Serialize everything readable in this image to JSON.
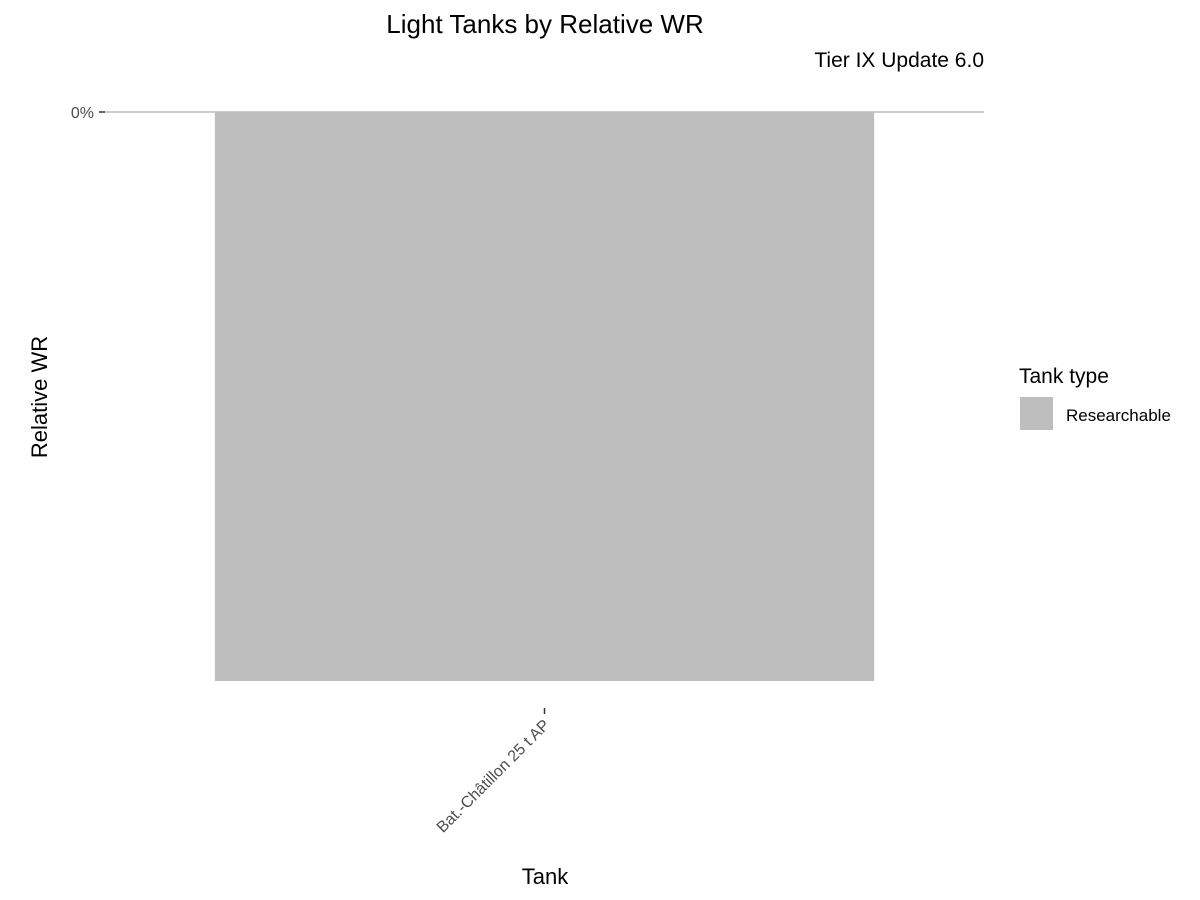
{
  "chart_data": {
    "type": "bar",
    "title": "Light Tanks by Relative WR",
    "subtitle": "Tier IX Update 6.0",
    "xlabel": "Tank",
    "ylabel": "Relative WR",
    "categories": [
      "Bat.-Châtillon 25 t AP"
    ],
    "series": [
      {
        "values": [
          0
        ],
        "tank_type": [
          "Researchable"
        ]
      }
    ],
    "y_ticks": [
      "0%"
    ],
    "legend": {
      "title": "Tank type",
      "placement": "right",
      "items": [
        {
          "label": "Researchable",
          "color": "#bebebe"
        }
      ]
    },
    "grid": false,
    "colors": {
      "bar": "#bebebe",
      "axis_line": "#bdbdbd",
      "tick_mark": "#333333",
      "tick_text": "#4d4d4d"
    }
  }
}
